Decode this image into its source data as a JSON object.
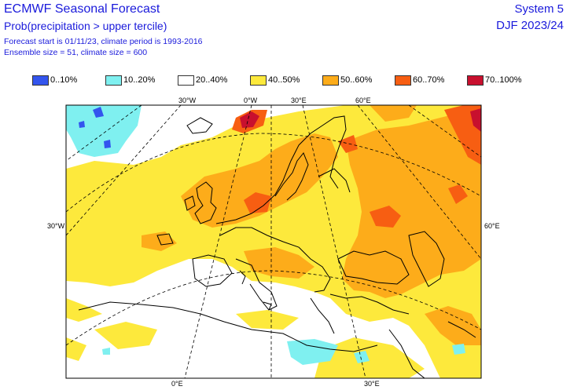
{
  "header": {
    "title": "ECMWF Seasonal Forecast",
    "subtitle": "Prob(precipitation > upper tercile)",
    "line3": "Forecast start is 01/11/23, climate period is 1993-2016",
    "line4": "Ensemble size = 51, climate size = 600",
    "system": "System 5",
    "season": "DJF 2023/24"
  },
  "legend": [
    {
      "label": "0..10%",
      "color": "#3355ee"
    },
    {
      "label": "10..20%",
      "color": "#7ff0f0"
    },
    {
      "label": "20..40%",
      "color": "#ffffff"
    },
    {
      "label": "40..50%",
      "color": "#fde93c"
    },
    {
      "label": "50..60%",
      "color": "#fdac1a"
    },
    {
      "label": "60..70%",
      "color": "#f75e12"
    },
    {
      "label": "70..100%",
      "color": "#c8102e"
    }
  ],
  "axis_labels": {
    "top_30w": "30°W",
    "top_0": "0°W",
    "top_30e": "30°E",
    "top_60e": "60°E",
    "left_30w": "30°W",
    "right_60e": "60°E",
    "bottom_0": "0°E",
    "bottom_30e": "30°E"
  },
  "colors": {
    "text": "#1a1adb",
    "coast": "#000000",
    "grid": "#000000"
  }
}
